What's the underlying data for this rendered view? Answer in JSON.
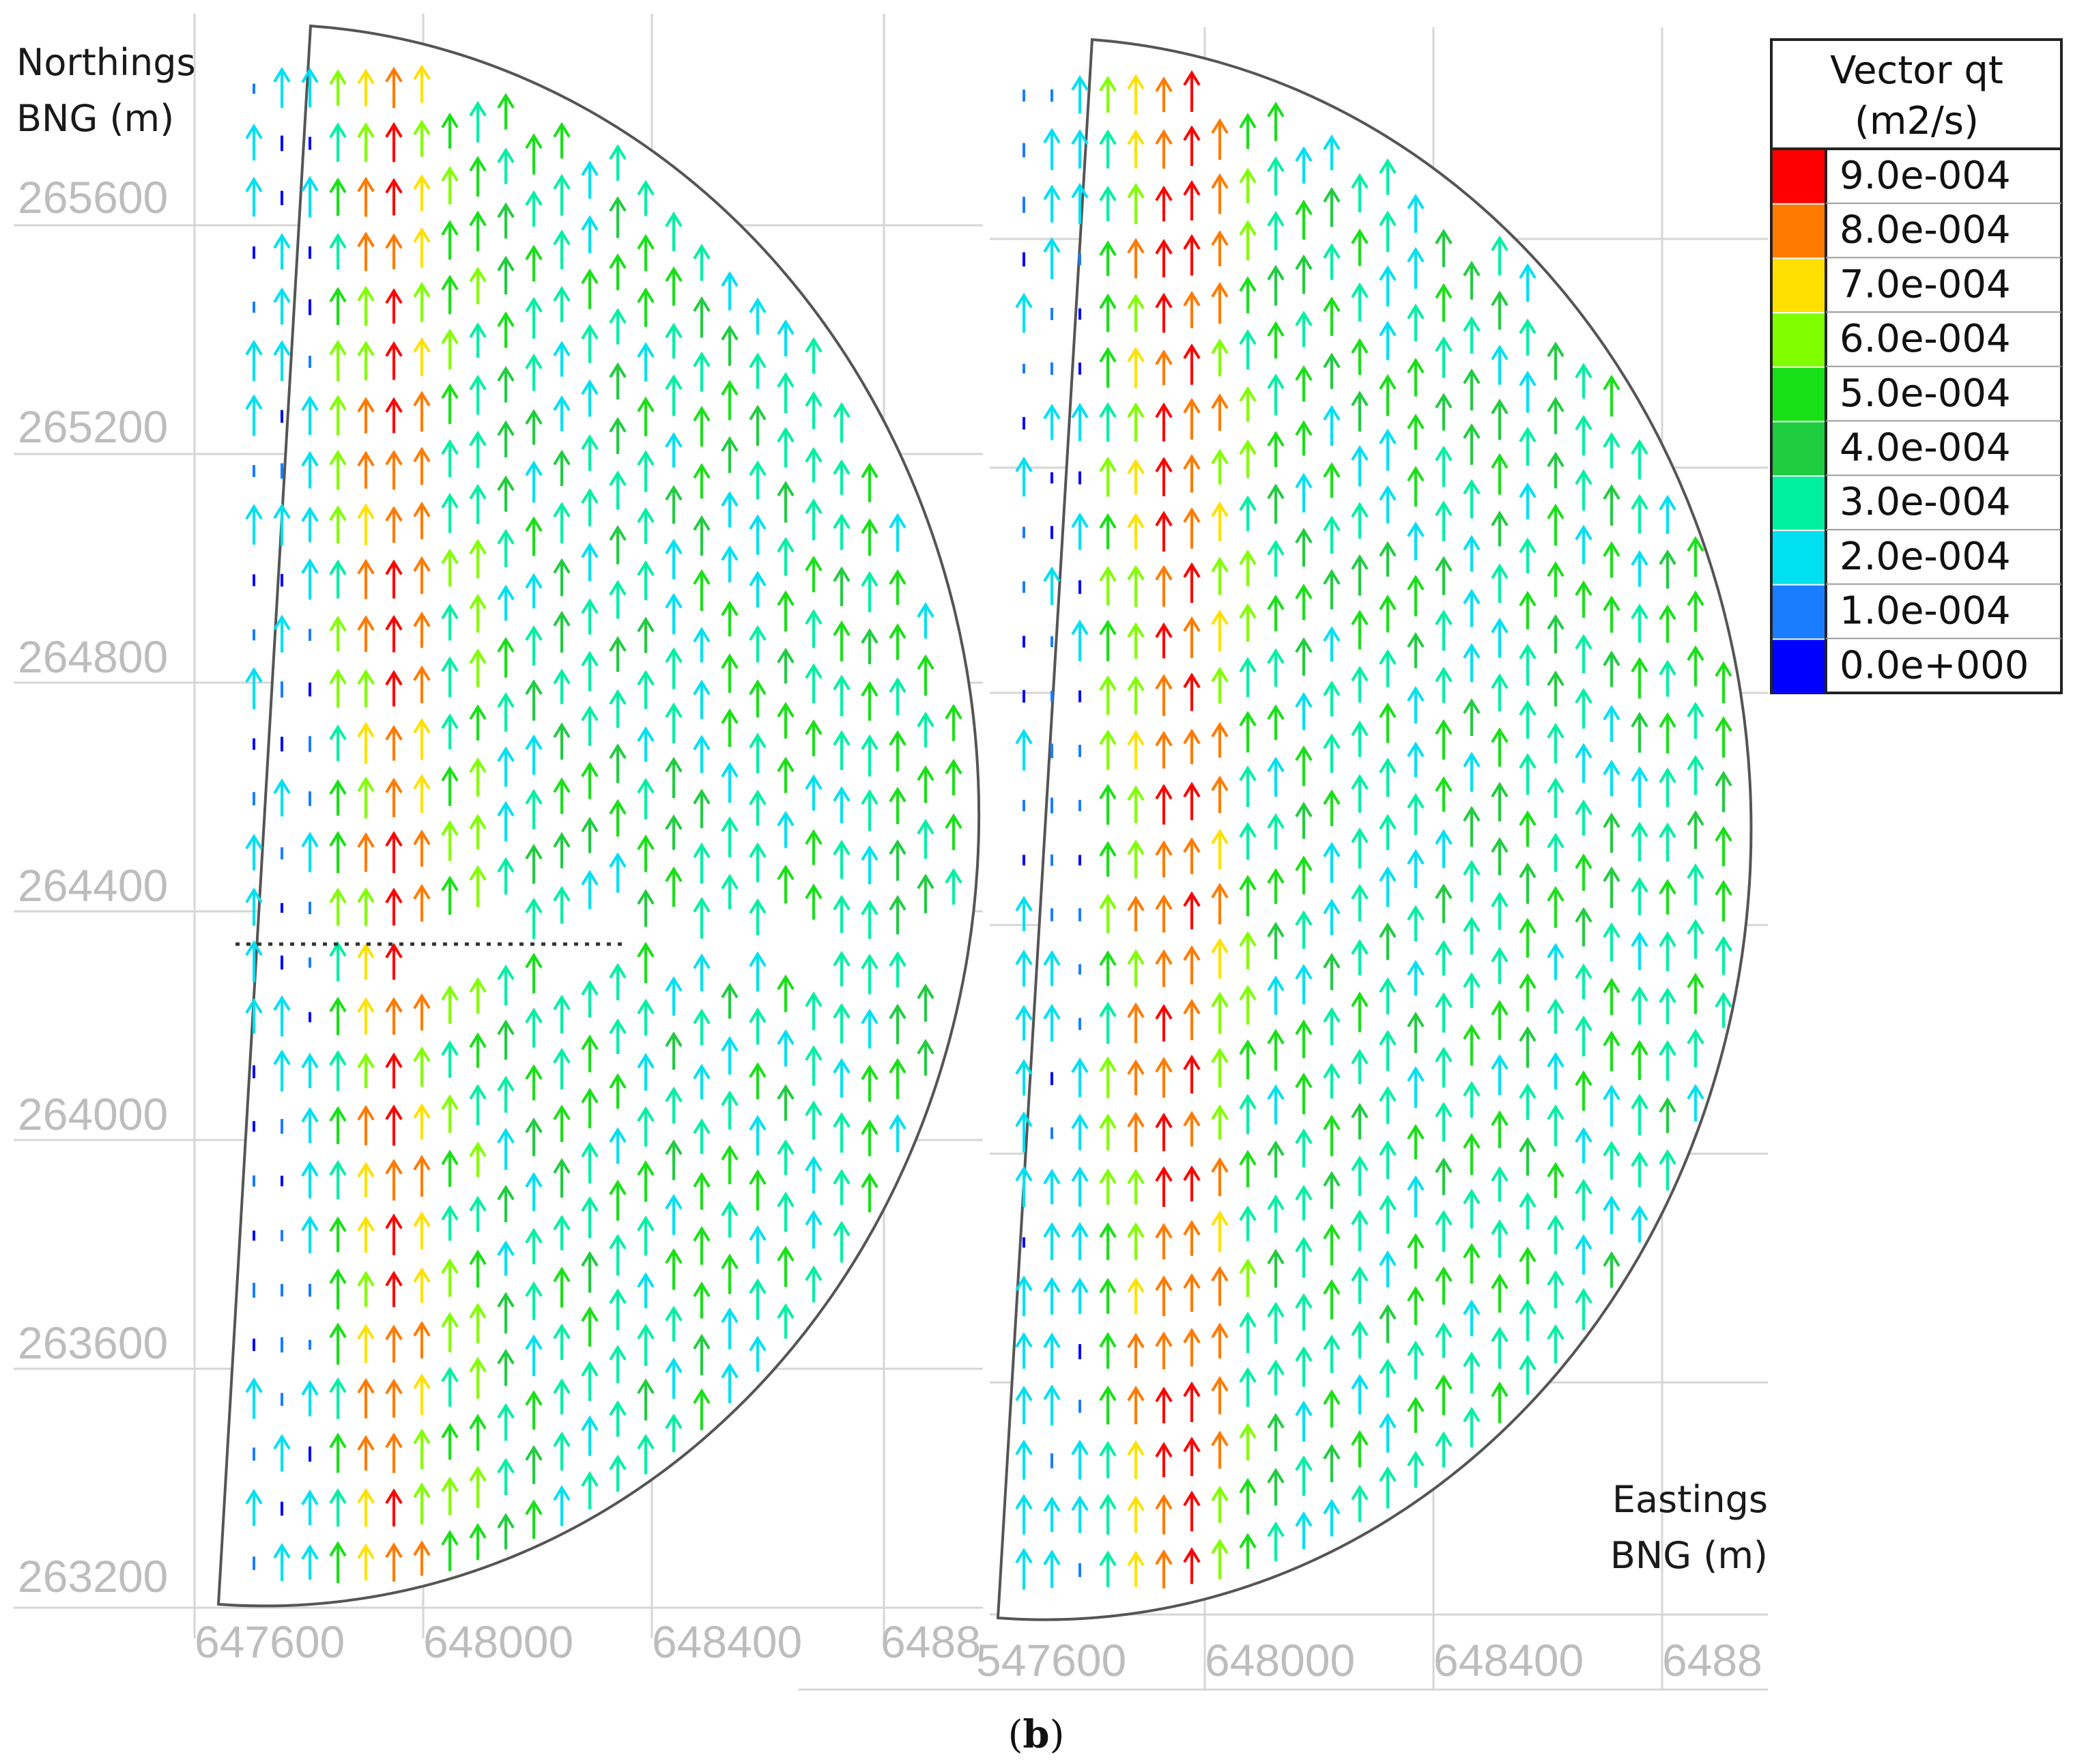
{
  "panels": [
    {
      "id": "left",
      "y_axis_label": [
        "Northings",
        "BNG (m)"
      ],
      "y_ticks": [
        "265600",
        "265200",
        "264800",
        "264400",
        "264000",
        "263600",
        "263200"
      ],
      "x_ticks": [
        "647600",
        "648000",
        "648400",
        "6488"
      ]
    },
    {
      "id": "right",
      "x_axis_label": [
        "Eastings",
        "BNG (m)"
      ],
      "x_ticks": [
        "547600",
        "648000",
        "648400",
        "6488"
      ]
    }
  ],
  "legend": {
    "title": [
      "Vector qt",
      "(m2/s)"
    ],
    "entries": [
      {
        "label": "9.0e-004",
        "color": "#ff0000"
      },
      {
        "label": "8.0e-004",
        "color": "#ff7a00"
      },
      {
        "label": "7.0e-004",
        "color": "#ffe000"
      },
      {
        "label": "6.0e-004",
        "color": "#80ff00"
      },
      {
        "label": "5.0e-004",
        "color": "#18e018"
      },
      {
        "label": "4.0e-004",
        "color": "#20cc40"
      },
      {
        "label": "3.0e-004",
        "color": "#00f0a0"
      },
      {
        "label": "2.0e-004",
        "color": "#00e0f0"
      },
      {
        "label": "1.0e-004",
        "color": "#1a7dff"
      },
      {
        "label": "0.0e+000",
        "color": "#0000ff"
      }
    ]
  },
  "caption": {
    "open": "(",
    "letter": "b",
    "close": ")"
  }
}
